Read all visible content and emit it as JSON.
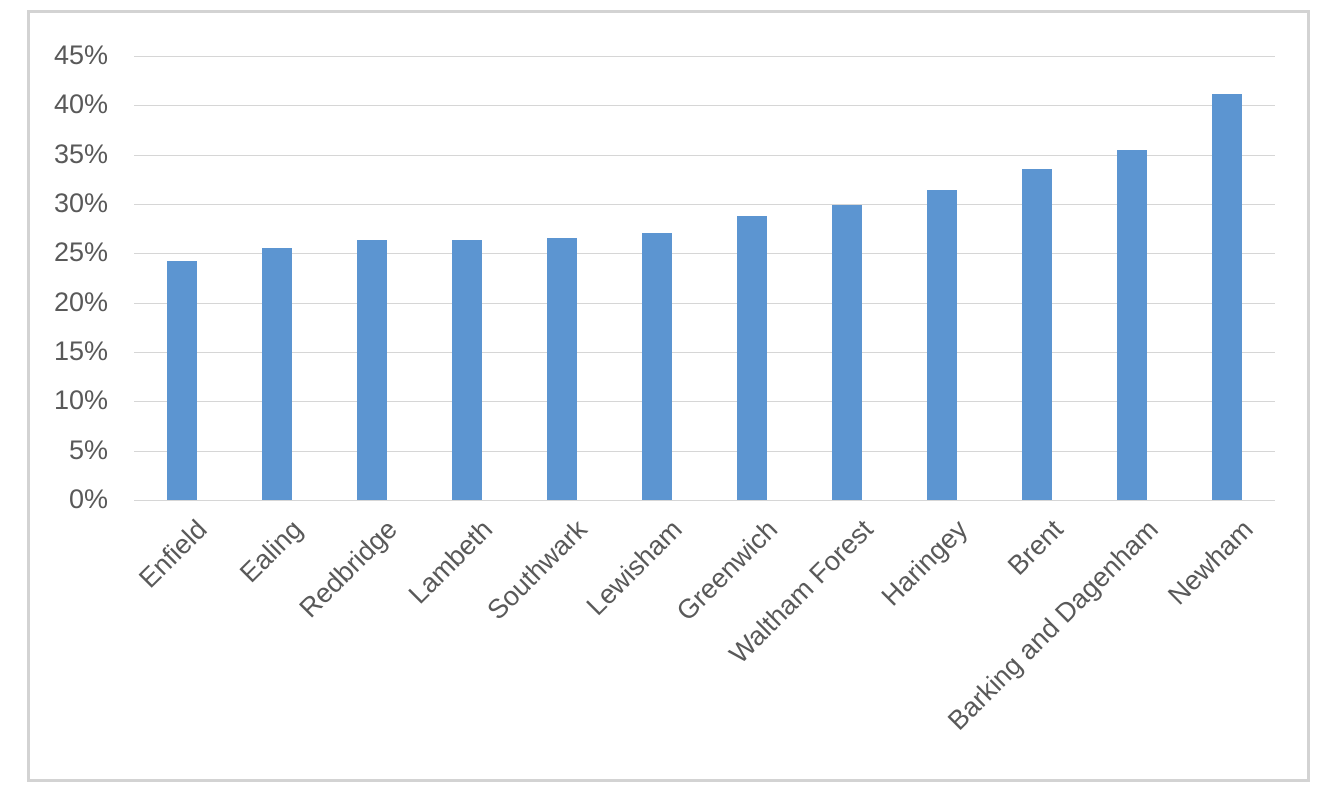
{
  "chart_data": {
    "type": "bar",
    "title": "",
    "xlabel": "",
    "ylabel": "",
    "categories": [
      "Enfield",
      "Ealing",
      "Redbridge",
      "Lambeth",
      "Southwark",
      "Lewisham",
      "Greenwich",
      "Waltham Forest",
      "Haringey",
      "Brent",
      "Barking and Dagenham",
      "Newham"
    ],
    "values": [
      24.2,
      25.5,
      26.4,
      26.4,
      26.6,
      27.1,
      28.8,
      29.9,
      31.4,
      33.5,
      35.5,
      41.1
    ],
    "ylim": [
      0,
      45
    ],
    "ytick_step": 5,
    "ytick_labels": [
      "0%",
      "5%",
      "10%",
      "15%",
      "20%",
      "25%",
      "30%",
      "35%",
      "40%",
      "45%"
    ],
    "grid": true,
    "legend": false,
    "colors": {
      "bar_fill": "#5c95d1",
      "gridline": "#d6d6d6",
      "axis_text": "#595959",
      "frame_border": "#d3d3d3",
      "background": "#ffffff"
    }
  }
}
